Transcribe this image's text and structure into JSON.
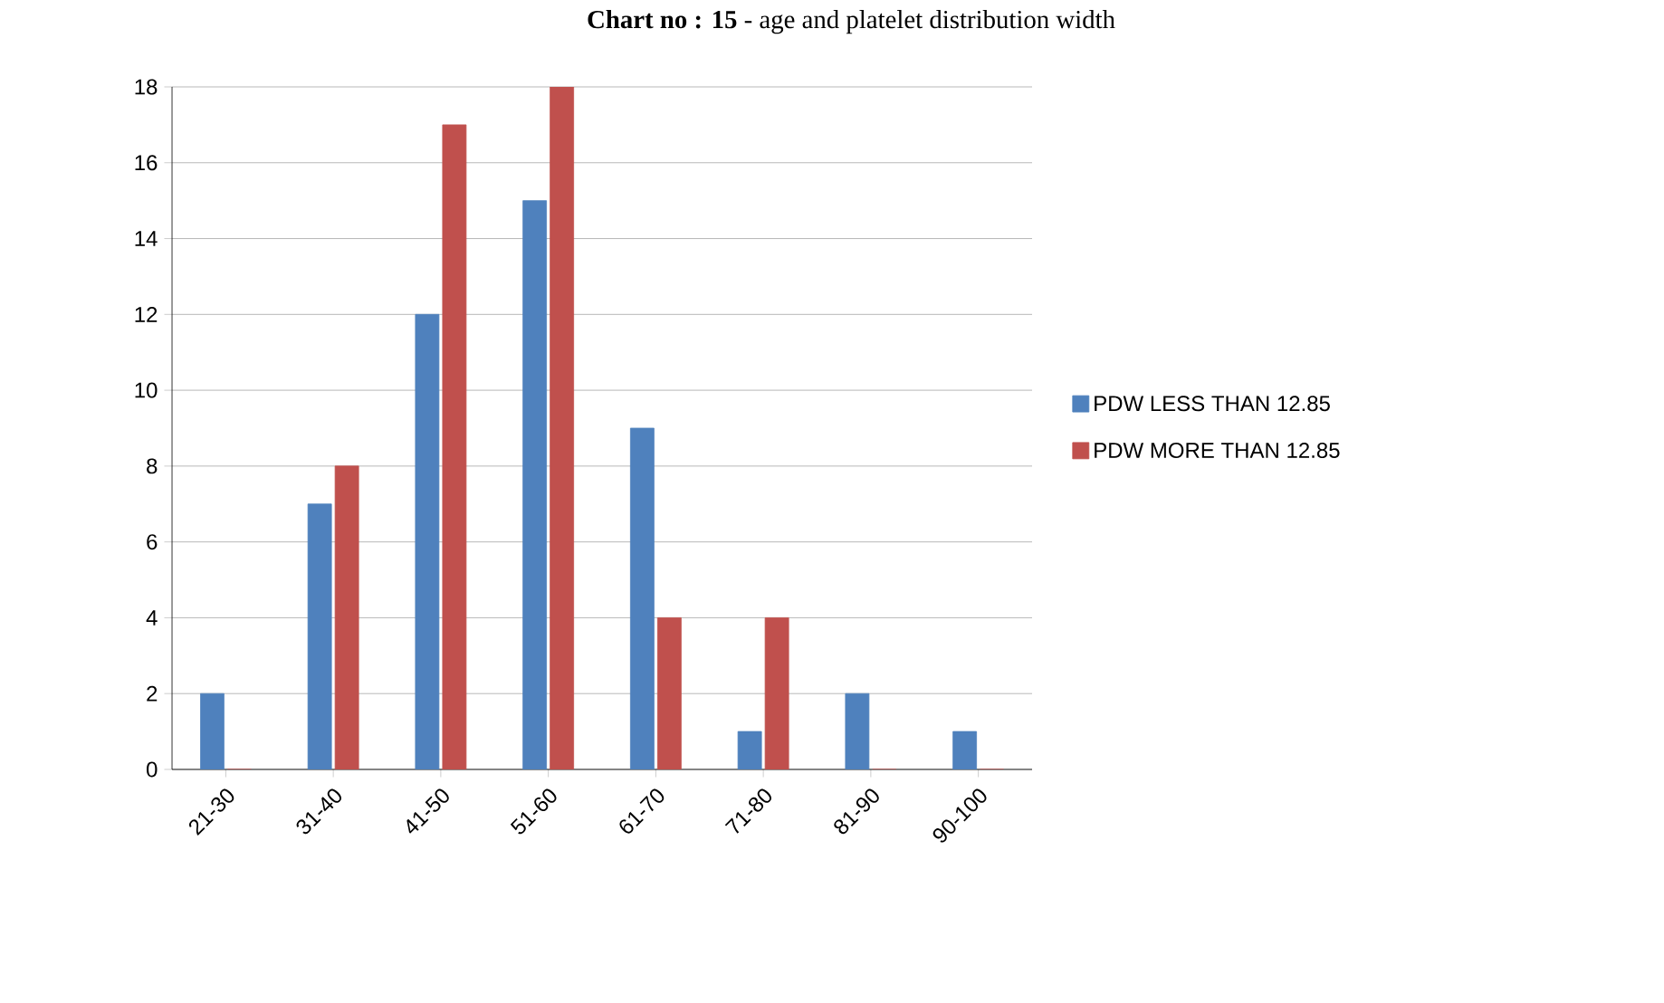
{
  "chart_data": {
    "type": "bar",
    "title": "**Chart no : 15** - age and platelet distribution width",
    "categories": [
      "21-30",
      "31-40",
      "41-50",
      "51-60",
      "61-70",
      "71-80",
      "81-90",
      "90-100"
    ],
    "series": [
      {
        "name": "PDW LESS THAN  12.85",
        "color": "#4f81bd",
        "values": [
          2,
          7,
          12,
          15,
          9,
          1,
          2,
          1
        ]
      },
      {
        "name": "PDW MORE THAN 12.85",
        "color": "#c0504d",
        "values": [
          0,
          8,
          17,
          18,
          4,
          4,
          0,
          0
        ]
      }
    ],
    "ylim": [
      0,
      18
    ],
    "yticks": [
      0,
      2,
      4,
      6,
      8,
      10,
      12,
      14,
      16,
      18
    ],
    "grid": "y",
    "legend": "right"
  }
}
